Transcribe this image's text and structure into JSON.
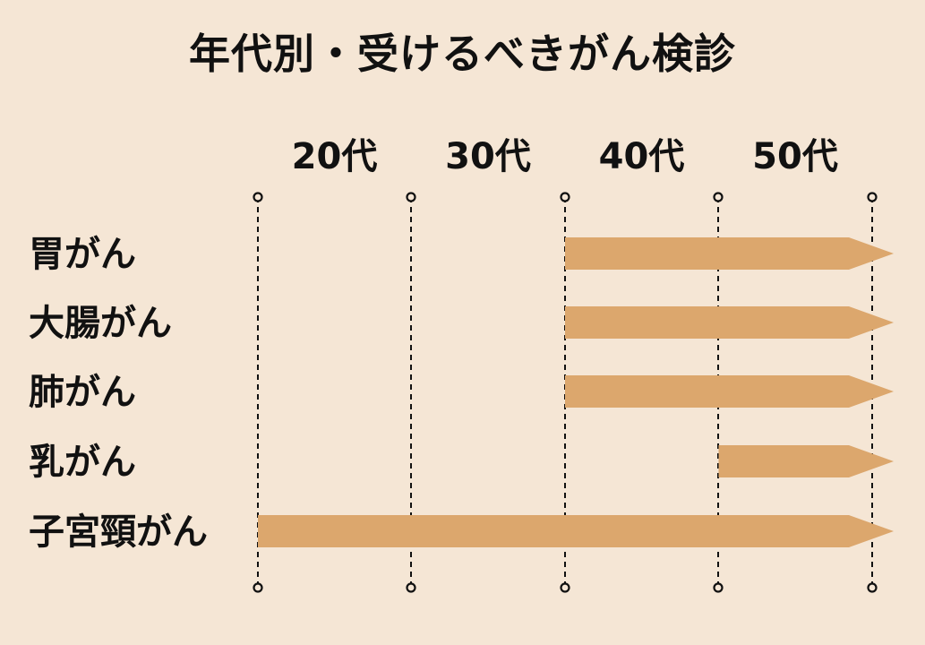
{
  "chart_data": {
    "type": "bar",
    "title": "年代別・受けるべきがん検診",
    "x_ticks": [
      "20代",
      "30代",
      "40代",
      "50代"
    ],
    "x_domain": [
      20,
      60
    ],
    "categories": [
      "胃がん",
      "大腸がん",
      "肺がん",
      "乳がん",
      "子宮頸がん"
    ],
    "ranges": [
      {
        "start": 40,
        "end": 60,
        "open_ended": true
      },
      {
        "start": 40,
        "end": 60,
        "open_ended": true
      },
      {
        "start": 40,
        "end": 60,
        "open_ended": true
      },
      {
        "start": 50,
        "end": 60,
        "open_ended": true
      },
      {
        "start": 20,
        "end": 60,
        "open_ended": true
      }
    ],
    "bar_color": "#dca76d",
    "background": "#f5e6d5",
    "grid": true
  }
}
